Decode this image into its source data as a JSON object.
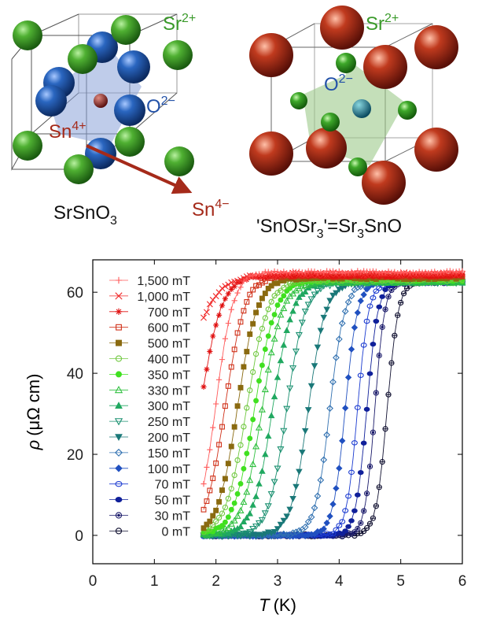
{
  "figure": {
    "left_structure": {
      "formula_parts": [
        "SrSnO",
        "3"
      ],
      "ion_sr": "Sr",
      "ion_sr_charge": "2+",
      "ion_o": "O",
      "ion_o_charge": "2−",
      "ion_sn": "Sn",
      "ion_sn_charge": "4+"
    },
    "right_structure": {
      "formula_parts": [
        "'SnOSr",
        "3",
        "'=Sr",
        "3",
        "SnO"
      ],
      "ion_sr": "Sr",
      "ion_sr_charge": "2+",
      "ion_o": "O",
      "ion_o_charge": "2−"
    },
    "arrow_target": {
      "ion": "Sn",
      "charge": "4−"
    },
    "colors": {
      "sr_green": "#2f8a1f",
      "sn_blue": "#1f5aa8",
      "sn_red": "#b5321c",
      "o_green": "#3aa02a",
      "octa_blue": "#8aa2d8",
      "octa_green": "#9cc98a",
      "label_green": "#3a9a2a",
      "label_blue": "#2352a8",
      "label_red": "#a52a1a"
    }
  },
  "chart_data": {
    "type": "line",
    "xlabel_italic": "T",
    "xlabel_unit": "(K)",
    "ylabel_italic": "ρ",
    "ylabel_unit": "(μΩ cm)",
    "xlim": [
      0,
      6
    ],
    "ylim": [
      -7,
      68
    ],
    "xticks": [
      "0",
      "1",
      "2",
      "3",
      "4",
      "5",
      "6"
    ],
    "yticks": [
      "0",
      "20",
      "40",
      "60"
    ],
    "legend_position": "top-left",
    "series": [
      {
        "name": "1,500 mT",
        "color": "#ff5a5a",
        "marker": "plus",
        "Tc": 2.0,
        "width": 0.14,
        "tmin": 1.8,
        "rn": 65.0
      },
      {
        "name": "1,000 mT",
        "color": "#f02a2a",
        "marker": "x",
        "Tc": 1.4,
        "width": 0.25,
        "tmin": 1.8,
        "rn": 64.5
      },
      {
        "name": "700 mT",
        "color": "#e01010",
        "marker": "star",
        "Tc": 1.75,
        "width": 0.17,
        "tmin": 1.8,
        "rn": 64.0
      },
      {
        "name": "600 mT",
        "color": "#d03018",
        "marker": "square-open",
        "Tc": 2.15,
        "width": 0.16,
        "tmin": 1.8,
        "rn": 64.0
      },
      {
        "name": "500 mT",
        "color": "#8a6a10",
        "marker": "square-filled",
        "Tc": 2.35,
        "width": 0.16,
        "tmin": 1.8,
        "rn": 63.5
      },
      {
        "name": "400 mT",
        "color": "#70c840",
        "marker": "circle-open",
        "Tc": 2.5,
        "width": 0.17,
        "tmin": 1.8,
        "rn": 63.0
      },
      {
        "name": "350 mT",
        "color": "#40e020",
        "marker": "circle-filled",
        "Tc": 2.63,
        "width": 0.17,
        "tmin": 1.8,
        "rn": 63.0
      },
      {
        "name": "330 mT",
        "color": "#30c040",
        "marker": "triangle-open",
        "Tc": 2.75,
        "width": 0.16,
        "tmin": 1.8,
        "rn": 62.5
      },
      {
        "name": "300 mT",
        "color": "#20a860",
        "marker": "triangle-filled",
        "Tc": 2.92,
        "width": 0.16,
        "tmin": 1.8,
        "rn": 62.5
      },
      {
        "name": "250 mT",
        "color": "#1a9070",
        "marker": "triangle-down-open",
        "Tc": 3.15,
        "width": 0.15,
        "tmin": 1.8,
        "rn": 62.5
      },
      {
        "name": "200 mT",
        "color": "#1a7878",
        "marker": "triangle-down-filled",
        "Tc": 3.5,
        "width": 0.14,
        "tmin": 1.8,
        "rn": 62.5
      },
      {
        "name": "150 mT",
        "color": "#3070b0",
        "marker": "diamond-open",
        "Tc": 3.85,
        "width": 0.12,
        "tmin": 1.8,
        "rn": 62.5
      },
      {
        "name": "100 mT",
        "color": "#2050c0",
        "marker": "diamond-filled",
        "Tc": 4.1,
        "width": 0.1,
        "tmin": 1.8,
        "rn": 62.5
      },
      {
        "name": "70 mT",
        "color": "#1a3ad0",
        "marker": "pentagon-open",
        "Tc": 4.3,
        "width": 0.09,
        "tmin": 1.8,
        "rn": 62.5
      },
      {
        "name": "50 mT",
        "color": "#10209a",
        "marker": "pentagon-filled",
        "Tc": 4.45,
        "width": 0.09,
        "tmin": 1.8,
        "rn": 62.5
      },
      {
        "name": "30 mT",
        "color": "#1a1a6a",
        "marker": "circle-dot",
        "Tc": 4.58,
        "width": 0.08,
        "tmin": 1.8,
        "rn": 62.5
      },
      {
        "name": "0 mT",
        "color": "#101030",
        "marker": "circle-line",
        "Tc": 4.78,
        "width": 0.09,
        "tmin": 1.8,
        "rn": 62.5
      }
    ]
  }
}
